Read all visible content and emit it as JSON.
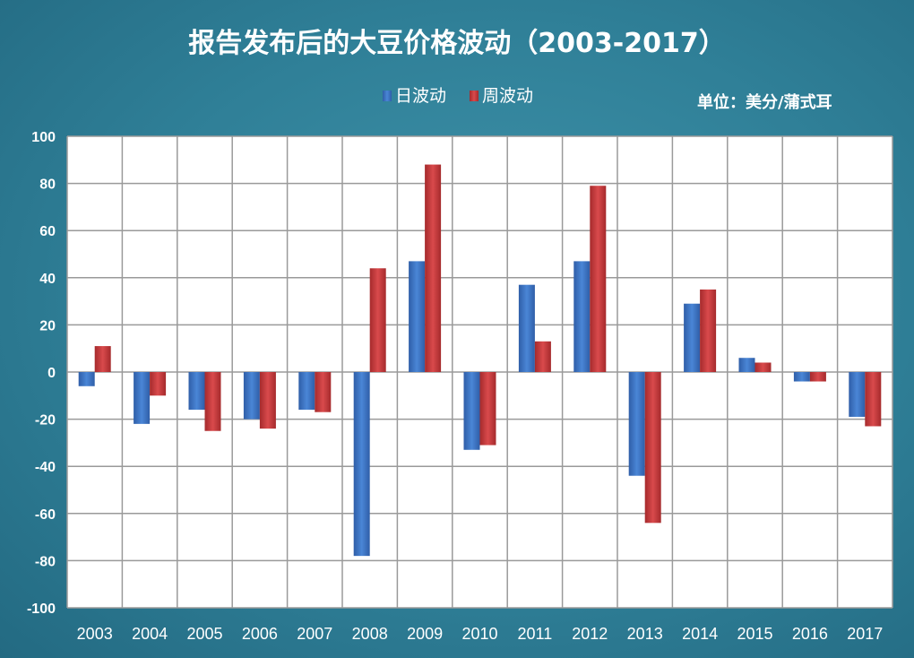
{
  "chart_data": {
    "type": "bar",
    "title": "报告发布后的大豆价格波动（2003-2017）",
    "unit_label": "单位：美分/蒲式耳",
    "categories": [
      "2003",
      "2004",
      "2005",
      "2006",
      "2007",
      "2008",
      "2009",
      "2010",
      "2011",
      "2012",
      "2013",
      "2014",
      "2015",
      "2016",
      "2017"
    ],
    "series": [
      {
        "name": "日波动",
        "color": "#3a6fbf",
        "values": [
          -6,
          -22,
          -16,
          -20,
          -16,
          -78,
          47,
          -33,
          37,
          47,
          -44,
          29,
          6,
          -4,
          -19
        ]
      },
      {
        "name": "周波动",
        "color": "#c0393b",
        "values": [
          11,
          -10,
          -25,
          -24,
          -17,
          44,
          88,
          -31,
          13,
          79,
          -64,
          35,
          4,
          -4,
          -23
        ]
      }
    ],
    "ylim": [
      -100,
      100
    ],
    "yticks": [
      100,
      80,
      60,
      40,
      20,
      0,
      -20,
      -40,
      -60,
      -80,
      -100
    ],
    "xlabel": "",
    "ylabel": "",
    "grid": true,
    "legend": "top-center"
  }
}
